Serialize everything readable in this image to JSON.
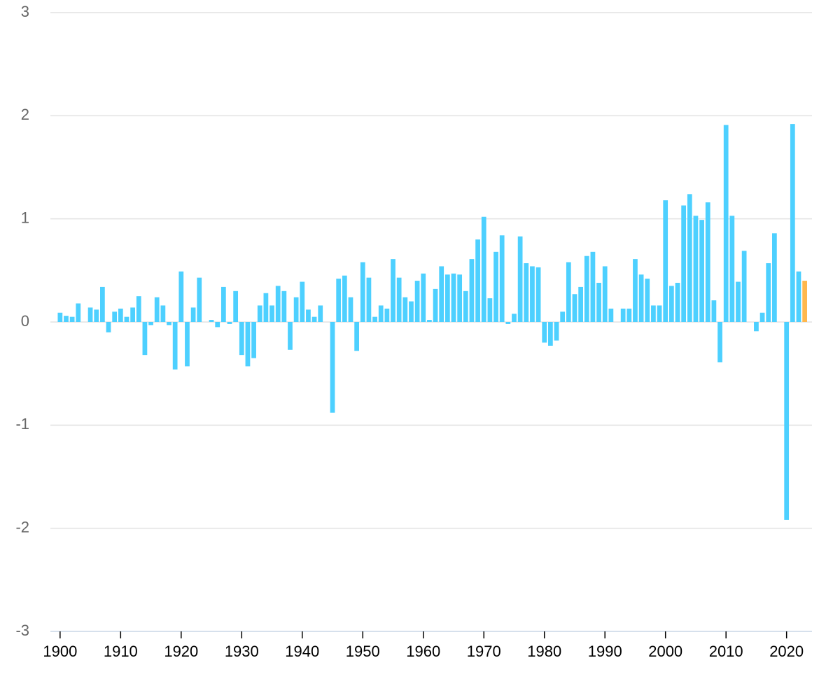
{
  "chart_data": {
    "type": "bar",
    "x": [
      1900,
      1901,
      1902,
      1903,
      1904,
      1905,
      1906,
      1907,
      1908,
      1909,
      1910,
      1911,
      1912,
      1913,
      1914,
      1915,
      1916,
      1917,
      1918,
      1919,
      1920,
      1921,
      1922,
      1923,
      1924,
      1925,
      1926,
      1927,
      1928,
      1929,
      1930,
      1931,
      1932,
      1933,
      1934,
      1935,
      1936,
      1937,
      1938,
      1939,
      1940,
      1941,
      1942,
      1943,
      1944,
      1945,
      1946,
      1947,
      1948,
      1949,
      1950,
      1951,
      1952,
      1953,
      1954,
      1955,
      1956,
      1957,
      1958,
      1959,
      1960,
      1961,
      1962,
      1963,
      1964,
      1965,
      1966,
      1967,
      1968,
      1969,
      1970,
      1971,
      1972,
      1973,
      1974,
      1975,
      1976,
      1977,
      1978,
      1979,
      1980,
      1981,
      1982,
      1983,
      1984,
      1985,
      1986,
      1987,
      1988,
      1989,
      1990,
      1991,
      1992,
      1993,
      1994,
      1995,
      1996,
      1997,
      1998,
      1999,
      2000,
      2001,
      2002,
      2003,
      2004,
      2005,
      2006,
      2007,
      2008,
      2009,
      2010,
      2011,
      2012,
      2013,
      2014,
      2015,
      2016,
      2017,
      2018,
      2019,
      2020,
      2021,
      2022,
      2023
    ],
    "values": [
      0.09,
      0.06,
      0.05,
      0.18,
      0,
      0.14,
      0.12,
      0.34,
      -0.1,
      0.1,
      0.13,
      0.05,
      0.14,
      0.25,
      -0.32,
      -0.03,
      0.24,
      0.16,
      -0.03,
      -0.46,
      0.49,
      -0.43,
      0.14,
      0.43,
      0,
      0.02,
      -0.05,
      0.34,
      -0.02,
      0.3,
      -0.32,
      -0.43,
      -0.35,
      0.16,
      0.28,
      0.16,
      0.35,
      0.3,
      -0.27,
      0.24,
      0.39,
      0.12,
      0.05,
      0.16,
      0,
      -0.88,
      0.42,
      0.45,
      0.24,
      -0.28,
      0.58,
      0.43,
      0.05,
      0.16,
      0.13,
      0.61,
      0.43,
      0.24,
      0.2,
      0.4,
      0.47,
      0.02,
      0.32,
      0.54,
      0.46,
      0.47,
      0.46,
      0.3,
      0.61,
      0.8,
      1.02,
      0.23,
      0.68,
      0.84,
      -0.02,
      0.08,
      0.83,
      0.57,
      0.54,
      0.53,
      -0.2,
      -0.23,
      -0.18,
      0.1,
      0.58,
      0.27,
      0.34,
      0.64,
      0.68,
      0.38,
      0.54,
      0.13,
      0,
      0.13,
      0.13,
      0.61,
      0.46,
      0.42,
      0.16,
      0.16,
      1.18,
      0.35,
      0.38,
      1.13,
      1.24,
      1.03,
      0.99,
      1.16,
      0.21,
      -0.39,
      1.91,
      1.03,
      0.39,
      0.69,
      0,
      -0.09,
      0.09,
      0.57,
      0.86,
      0,
      -1.92,
      1.92,
      0.49,
      0.4
    ],
    "color": "#4dd0ff",
    "highlight_x": 2023,
    "highlight_color": "#ffb84d",
    "xlim": [
      1898.4,
      2024.2
    ],
    "xticks": [
      1900,
      1910,
      1920,
      1930,
      1940,
      1950,
      1960,
      1970,
      1980,
      1990,
      2000,
      2010,
      2020
    ],
    "ylim": [
      -3,
      3
    ],
    "yticks": [
      -3,
      -2,
      -1,
      0,
      1,
      2,
      3
    ],
    "grid": true
  }
}
